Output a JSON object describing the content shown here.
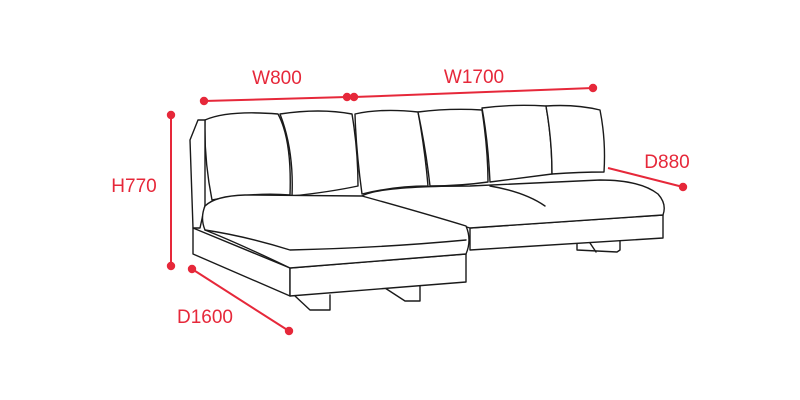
{
  "dimensions": {
    "width_left": "W800",
    "width_right": "W1700",
    "height": "H770",
    "depth_chaise": "D1600",
    "depth_sofa": "D880"
  },
  "colors": {
    "dimension": "#e6283a",
    "outline": "#1a1a1a",
    "background": "#ffffff"
  }
}
